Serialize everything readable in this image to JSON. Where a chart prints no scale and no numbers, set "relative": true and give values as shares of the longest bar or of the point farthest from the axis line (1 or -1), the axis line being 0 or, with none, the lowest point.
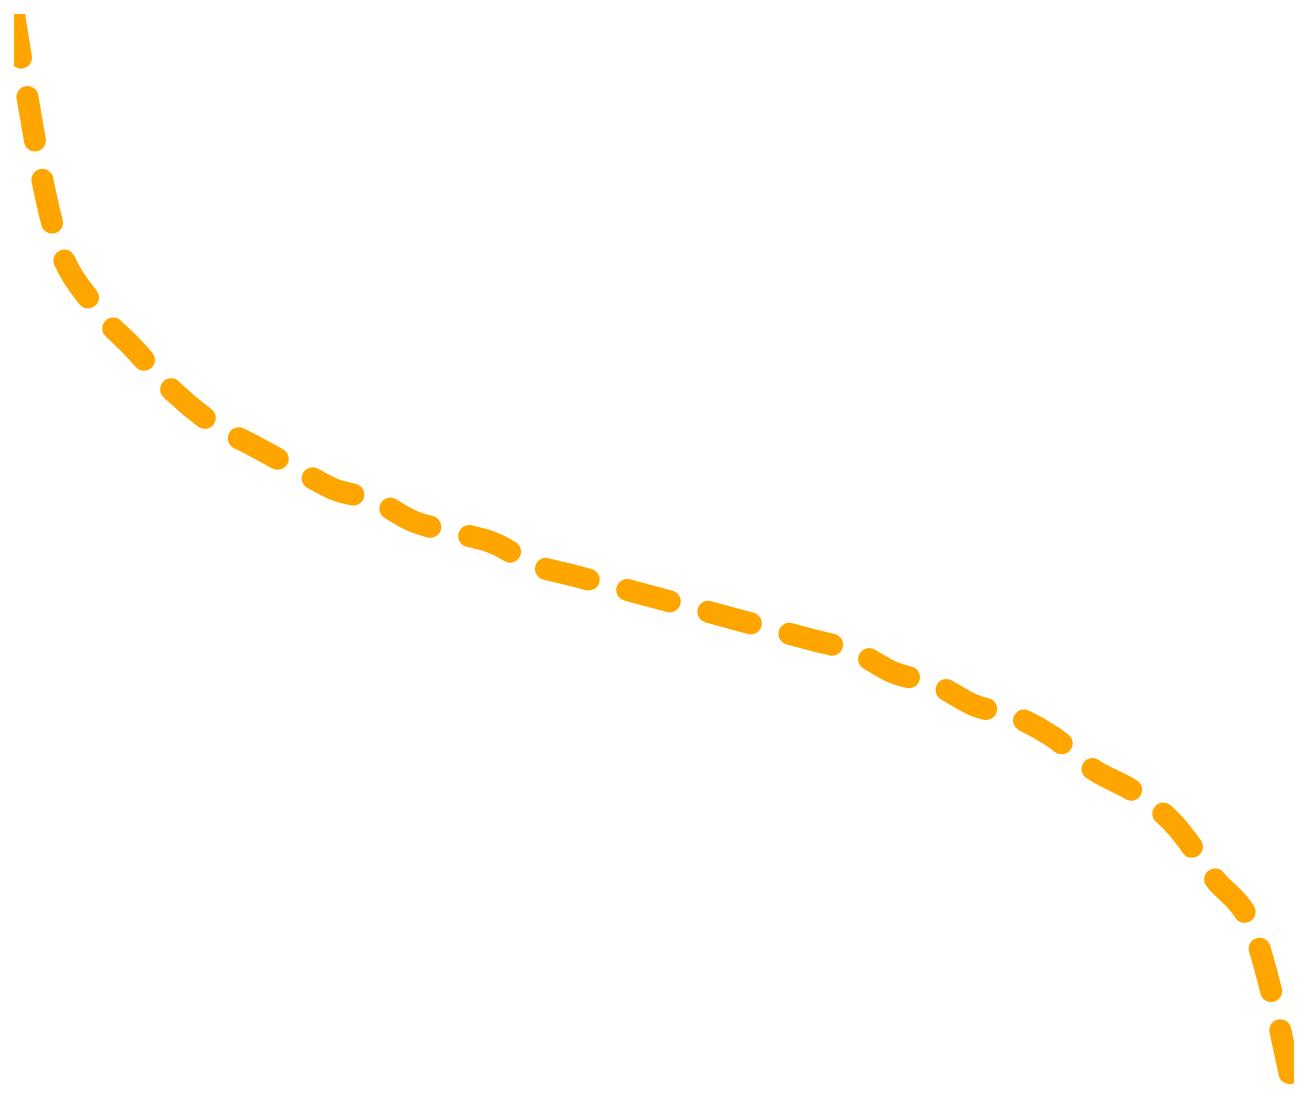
{
  "chart_data": {
    "type": "line",
    "relative": true,
    "line_style": "dashed",
    "color": "#ffa500",
    "categories": [
      null,
      null,
      null,
      null,
      null,
      null,
      null,
      null,
      null,
      null,
      null,
      null,
      null,
      null,
      null,
      null,
      null,
      null,
      null,
      null,
      null,
      null,
      null,
      null,
      null,
      null,
      null,
      null,
      null,
      null,
      null,
      null,
      null
    ],
    "values": [
      1.0,
      0.8,
      0.73,
      0.69,
      0.65,
      0.62,
      0.6,
      0.58,
      0.56,
      0.55,
      0.53,
      0.52,
      0.51,
      0.49,
      0.48,
      0.47,
      0.46,
      0.45,
      0.44,
      0.43,
      0.42,
      0.41,
      0.39,
      0.38,
      0.36,
      0.35,
      0.33,
      0.3,
      0.28,
      0.25,
      0.2,
      0.15,
      0.0
    ]
  }
}
